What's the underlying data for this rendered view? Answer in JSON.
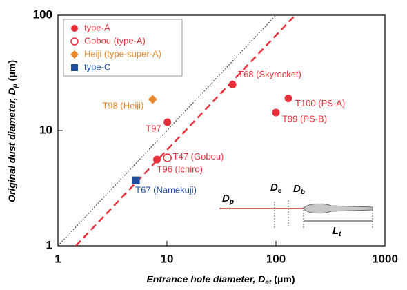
{
  "chart_data": {
    "type": "scatter",
    "xlabel": {
      "text": "Entrance hole diameter, ",
      "var": "D",
      "sub": "et",
      "unit": " (μm)"
    },
    "ylabel": {
      "text": "Original dust diameter, ",
      "var": "D",
      "sub": "p",
      "unit": " (μm)"
    },
    "log_x": true,
    "log_y": true,
    "xlim": [
      1,
      1000
    ],
    "ylim": [
      1,
      100
    ],
    "xticks": [
      1,
      10,
      100,
      1000
    ],
    "yticks": [
      1,
      10,
      100
    ],
    "legend": "upper left",
    "series": [
      {
        "name": "type-A",
        "color": "#e8303a",
        "marker": "circle",
        "x": [
          40,
          10.1,
          130,
          100,
          8.1
        ],
        "y": [
          25,
          11.8,
          19,
          14.3,
          5.6
        ],
        "labels": [
          "T68 (Skyrocket)",
          "T97",
          "T100 (PS-A)",
          "T99 (PS-B)",
          "T96 (Ichiro)"
        ]
      },
      {
        "name": "Gobou (type-A)",
        "color": "#e8303a",
        "marker": "open-circle",
        "x": [
          10.1
        ],
        "y": [
          5.8
        ],
        "labels": [
          "T47 (Gobou)"
        ]
      },
      {
        "name": "Heiji (type-super-A)",
        "color": "#e8862a",
        "marker": "diamond",
        "x": [
          7.4
        ],
        "y": [
          18.6
        ],
        "labels": [
          "T98 (Heiji)"
        ]
      },
      {
        "name": "type-C",
        "color": "#1f4e9c",
        "marker": "square",
        "x": [
          5.2
        ],
        "y": [
          3.7
        ],
        "labels": [
          "T67 (Namekuji)"
        ]
      }
    ],
    "lines": [
      {
        "style": "dotted",
        "color": "#333333",
        "x": [
          1,
          100
        ],
        "y": [
          1,
          100
        ]
      },
      {
        "style": "dashed",
        "color": "#e8303a",
        "x": [
          1.46,
          150
        ],
        "y": [
          1,
          100
        ]
      }
    ],
    "inset": [
      {
        "var": "D",
        "sub": "p"
      },
      {
        "var": "D",
        "sub": "e"
      },
      {
        "var": "D",
        "sub": "b"
      },
      {
        "var": "L",
        "sub": "t"
      }
    ]
  }
}
